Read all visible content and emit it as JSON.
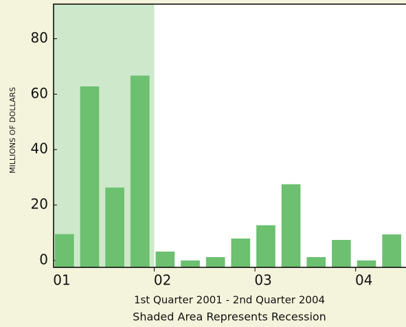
{
  "chart_data": {
    "type": "bar",
    "y_label": "MILLIONS OF DOLLARS",
    "x_label": "1st Quarter 2001 - 2nd Quarter 2004",
    "note": "Shaded Area Represents Recession",
    "categories": [
      "01",
      null,
      null,
      null,
      "02",
      null,
      null,
      null,
      "03",
      null,
      null,
      null,
      "04",
      null
    ],
    "values": [
      9.5,
      62.8,
      26.3,
      66.7,
      3.2,
      0,
      1.2,
      7.9,
      12.7,
      27.5,
      1.2,
      7.4,
      0,
      9.4
    ],
    "color": "#6cc070",
    "shade_color": "#cde8cb",
    "shade_categories": [
      0,
      3
    ],
    "ylim": [
      -2.5,
      92.5
    ],
    "yticks": [
      0,
      20,
      40,
      60,
      80
    ],
    "grid": false
  }
}
